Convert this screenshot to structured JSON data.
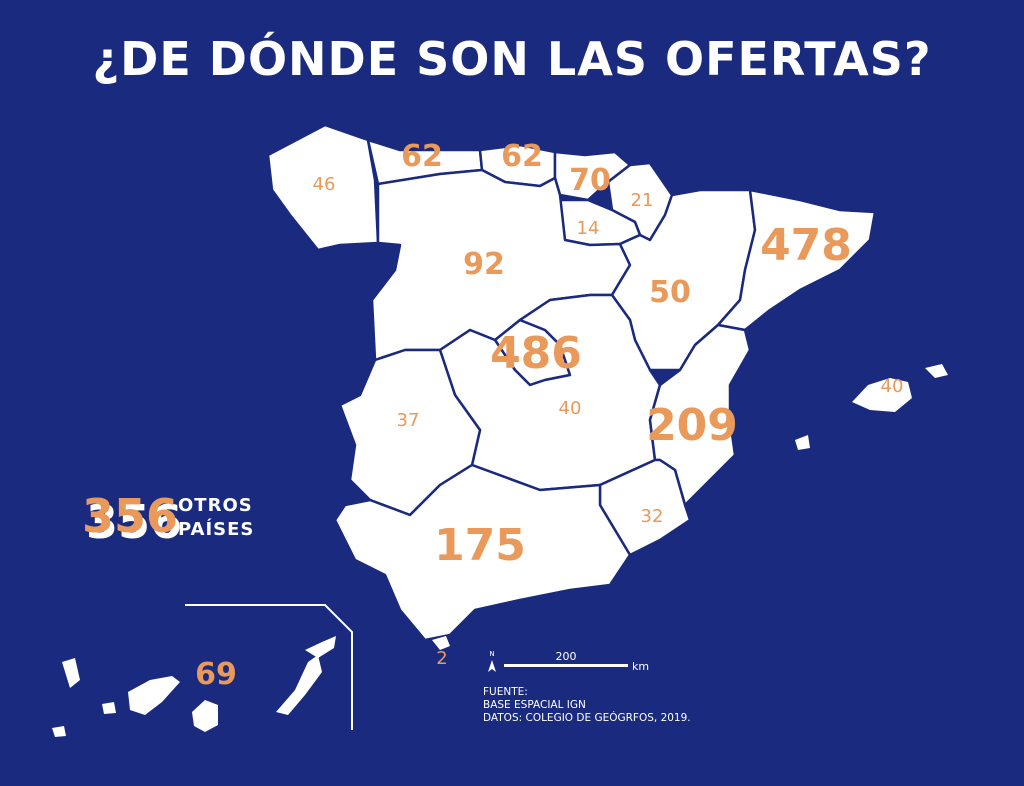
{
  "title": "¿DE DÓNDE SON LAS OFERTAS?",
  "regions": [
    {
      "id": "galicia",
      "value": "46"
    },
    {
      "id": "asturias",
      "value": "62"
    },
    {
      "id": "cantabria",
      "value": "62"
    },
    {
      "id": "pais-vasco",
      "value": "70"
    },
    {
      "id": "navarra",
      "value": "21"
    },
    {
      "id": "la-rioja",
      "value": "14"
    },
    {
      "id": "castilla-leon",
      "value": "92"
    },
    {
      "id": "aragon",
      "value": "50"
    },
    {
      "id": "cataluna",
      "value": "478"
    },
    {
      "id": "madrid",
      "value": "486"
    },
    {
      "id": "castilla-la-mancha",
      "value": "40"
    },
    {
      "id": "extremadura",
      "value": "37"
    },
    {
      "id": "valencia",
      "value": "209"
    },
    {
      "id": "murcia",
      "value": "32"
    },
    {
      "id": "andalucia",
      "value": "175"
    },
    {
      "id": "baleares",
      "value": "40"
    },
    {
      "id": "canarias",
      "value": "69"
    },
    {
      "id": "ceuta",
      "value": "2"
    }
  ],
  "other": {
    "value": "356",
    "label_line1": "OTROS",
    "label_line2": "PAÍSES"
  },
  "scale": {
    "north": "N",
    "distance": "200",
    "unit": "km"
  },
  "source": {
    "line1": "FUENTE:",
    "line2": "BASE ESPACIAL IGN",
    "line3": "DATOS: COLEGIO DE GEÓGRFOS, 2019."
  },
  "colors": {
    "background": "#1a2a7e",
    "land": "#ffffff",
    "value": "#e9995a"
  }
}
